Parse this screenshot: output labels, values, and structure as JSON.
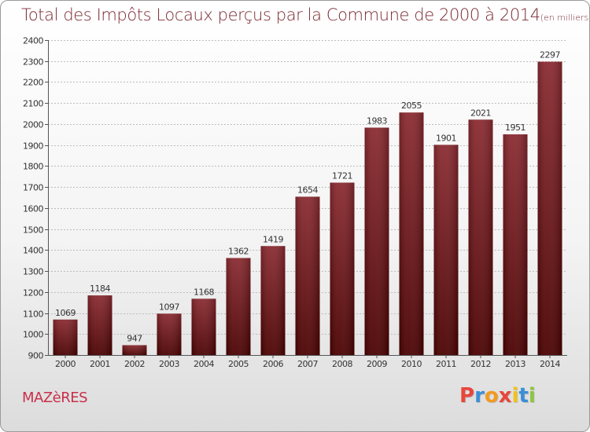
{
  "header": {
    "title": "Total des Impôts Locaux perçus par la Commune de 2000 à 2014",
    "unit": "(en milliers d'€)"
  },
  "footer": {
    "commune": "MAZèRES",
    "logo": "Proxiti",
    "logo_colors": [
      "#e8463c",
      "#3a8fd6",
      "#f39a1e",
      "#e8463c",
      "#f2c318",
      "#3a8fd6",
      "#8cc63f"
    ]
  },
  "chart_data": {
    "type": "bar",
    "title": "Total des Impôts Locaux perçus par la Commune de 2000 à 2014",
    "unit": "(en milliers d'€)",
    "xlabel": "",
    "ylabel": "",
    "categories": [
      "2000",
      "2001",
      "2002",
      "2003",
      "2004",
      "2005",
      "2006",
      "2007",
      "2008",
      "2009",
      "2010",
      "2011",
      "2012",
      "2013",
      "2014"
    ],
    "values": [
      1069,
      1184,
      947,
      1097,
      1168,
      1362,
      1419,
      1654,
      1721,
      1983,
      2055,
      1901,
      2021,
      1951,
      2297
    ],
    "ylim": [
      900,
      2400
    ],
    "yticks": [
      900,
      1000,
      1100,
      1200,
      1300,
      1400,
      1500,
      1600,
      1700,
      1800,
      1900,
      2000,
      2100,
      2200,
      2300,
      2400
    ],
    "grid": true,
    "bar_color_top": "#8a2a30",
    "bar_color_bottom": "#4a0000"
  }
}
